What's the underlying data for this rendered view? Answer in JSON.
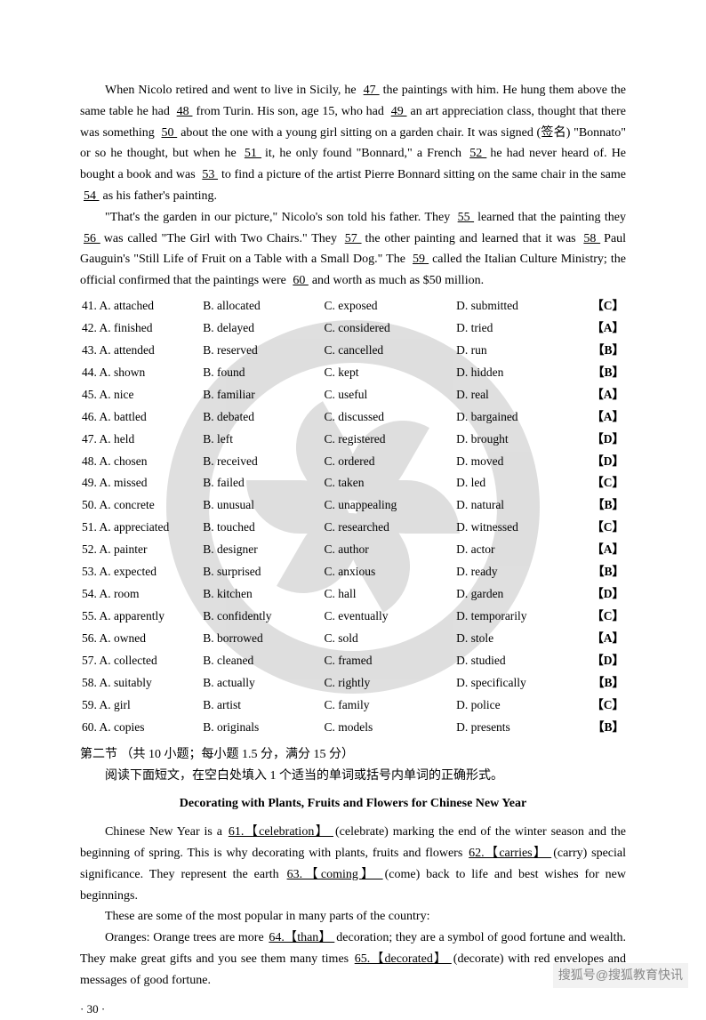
{
  "paragraphs": {
    "p1a": "When Nicolo retired and went to live in Sicily, he ",
    "b47": "  47  ",
    "p1b": " the paintings with him. He hung them above the same table he had ",
    "b48": "  48  ",
    "p1c": " from Turin. His son, age 15, who had ",
    "b49": "  49  ",
    "p1d": " an art appreciation class, thought that there was something ",
    "b50": "  50  ",
    "p1e": " about the one with a young girl sitting on a garden chair. It was signed (签名) \"Bonnato\" or so he thought, but when he ",
    "b51": "  51  ",
    "p1f": " it, he only found \"Bonnard,\" a French ",
    "b52": "  52  ",
    "p1g": " he had never heard of. He bought a book and was ",
    "b53": "  53  ",
    "p1h": " to find a picture of the artist Pierre Bonnard sitting on the same chair in the same ",
    "b54": "  54  ",
    "p1i": " as his father's painting.",
    "p2a": "\"That's the garden in our picture,\" Nicolo's son told his father. They ",
    "b55": "  55  ",
    "p2b": " learned that the painting they ",
    "b56": "  56  ",
    "p2c": " was called \"The Girl with Two Chairs.\" They ",
    "b57": "  57  ",
    "p2d": " the other painting and learned that it was ",
    "b58": "  58  ",
    "p2e": " Paul Gauguin's \"Still Life of Fruit on a Table with a Small Dog.\" The ",
    "b59": "  59  ",
    "p2f": " called the Italian Culture Ministry; the official confirmed that the paintings were ",
    "b60": "  60  ",
    "p2g": " and worth as much as $50 million."
  },
  "options": [
    {
      "n": "41",
      "a": "A. attached",
      "b": "B. allocated",
      "c": "C. exposed",
      "d": "D. submitted",
      "ans": "【C】"
    },
    {
      "n": "42",
      "a": "A. finished",
      "b": "B. delayed",
      "c": "C. considered",
      "d": "D. tried",
      "ans": "【A】"
    },
    {
      "n": "43",
      "a": "A. attended",
      "b": "B. reserved",
      "c": "C. cancelled",
      "d": "D. run",
      "ans": "【B】"
    },
    {
      "n": "44",
      "a": "A. shown",
      "b": "B. found",
      "c": "C. kept",
      "d": "D. hidden",
      "ans": "【B】"
    },
    {
      "n": "45",
      "a": "A. nice",
      "b": "B. familiar",
      "c": "C. useful",
      "d": "D. real",
      "ans": "【A】"
    },
    {
      "n": "46",
      "a": "A. battled",
      "b": "B. debated",
      "c": "C. discussed",
      "d": "D. bargained",
      "ans": "【A】"
    },
    {
      "n": "47",
      "a": "A. held",
      "b": "B. left",
      "c": "C. registered",
      "d": "D. brought",
      "ans": "【D】"
    },
    {
      "n": "48",
      "a": "A. chosen",
      "b": "B. received",
      "c": "C. ordered",
      "d": "D. moved",
      "ans": "【D】"
    },
    {
      "n": "49",
      "a": "A. missed",
      "b": "B. failed",
      "c": "C. taken",
      "d": "D. led",
      "ans": "【C】"
    },
    {
      "n": "50",
      "a": "A. concrete",
      "b": "B. unusual",
      "c": "C. unappealing",
      "d": "D. natural",
      "ans": "【B】"
    },
    {
      "n": "51",
      "a": "A. appreciated",
      "b": "B. touched",
      "c": "C. researched",
      "d": "D. witnessed",
      "ans": "【C】"
    },
    {
      "n": "52",
      "a": "A. painter",
      "b": "B. designer",
      "c": "C. author",
      "d": "D. actor",
      "ans": "【A】"
    },
    {
      "n": "53",
      "a": "A. expected",
      "b": "B. surprised",
      "c": "C. anxious",
      "d": "D. ready",
      "ans": "【B】"
    },
    {
      "n": "54",
      "a": "A. room",
      "b": "B. kitchen",
      "c": "C. hall",
      "d": "D. garden",
      "ans": "【D】"
    },
    {
      "n": "55",
      "a": "A. apparently",
      "b": "B. confidently",
      "c": "C. eventually",
      "d": "D. temporarily",
      "ans": "【C】"
    },
    {
      "n": "56",
      "a": "A. owned",
      "b": "B. borrowed",
      "c": "C. sold",
      "d": "D. stole",
      "ans": "【A】"
    },
    {
      "n": "57",
      "a": "A. collected",
      "b": "B. cleaned",
      "c": "C. framed",
      "d": "D. studied",
      "ans": "【D】"
    },
    {
      "n": "58",
      "a": "A. suitably",
      "b": "B. actually",
      "c": "C. rightly",
      "d": "D. specifically",
      "ans": "【B】"
    },
    {
      "n": "59",
      "a": "A. girl",
      "b": "B. artist",
      "c": "C. family",
      "d": "D. police",
      "ans": "【C】"
    },
    {
      "n": "60",
      "a": "A. copies",
      "b": "B. originals",
      "c": "C. models",
      "d": "D. presents",
      "ans": "【B】"
    }
  ],
  "section2": {
    "header": "第二节  （共 10 小题；每小题 1.5 分，满分 15 分）",
    "instruction": "阅读下面短文，在空白处填入 1 个适当的单词或括号内单词的正确形式。",
    "title": "Decorating with Plants, Fruits and Flowers for Chinese New Year",
    "p1a": "Chinese New Year is a ",
    "f61": " 61.【celebration】 ",
    "p1b": " (celebrate) marking the end of the winter season and the beginning of spring. This is why decorating with plants, fruits and flowers ",
    "f62": "62.【carries】 ",
    "p1c": " (carry) special significance. They represent the earth ",
    "f63": " 63.【coming】 ",
    "p1d": " (come) back to life and best wishes for new beginnings.",
    "p2": "These are some of the most popular in many parts of the country:",
    "p3a": "Oranges: Orange trees are more ",
    "f64": " 64.【than】 ",
    "p3b": " decoration; they are a symbol of good fortune and wealth. They make great gifts and you see them many times ",
    "f65": " 65.【decorated】 ",
    "p3c": " (decorate) with red envelopes and messages of good fortune."
  },
  "pageNum": "· 30 ·",
  "footerMark": "搜狐号@搜狐教育快讯"
}
